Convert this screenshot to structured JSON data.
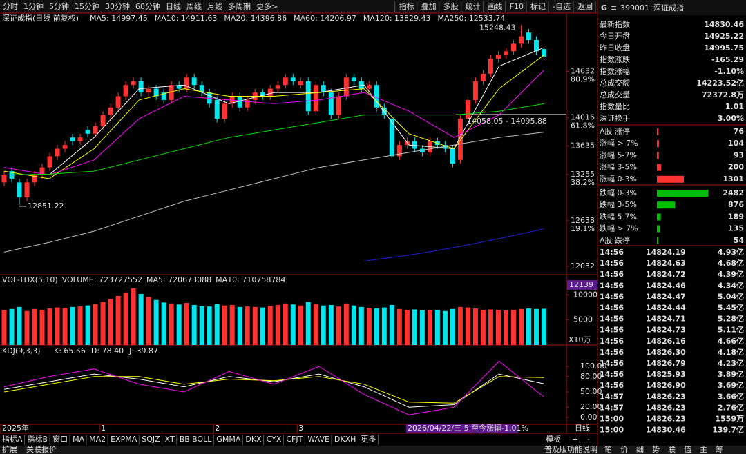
{
  "toolbar": {
    "tabs": [
      "分时",
      "1分钟",
      "5分钟",
      "15分钟",
      "30分钟",
      "60分钟",
      "日线",
      "周线",
      "月线",
      "多周期",
      "更多>"
    ],
    "buttons": [
      "指标",
      "叠加",
      "多股",
      "统计",
      "画线",
      "F10",
      "标记",
      "-自选",
      "返回"
    ]
  },
  "chart_data": [
    {
      "type": "candlestick",
      "title": "深证成指(日线 前复权)",
      "open": [
        13150,
        13300,
        13150,
        12950,
        13150,
        13250,
        13350,
        13500,
        13600,
        13750,
        13700,
        13850,
        13800,
        13900,
        14050,
        14150,
        14300,
        14450,
        14500,
        14350,
        14400,
        14350,
        14250,
        14450,
        14400,
        14550,
        14450,
        14350,
        14250,
        14000,
        14200,
        14300,
        14150,
        14250,
        14350,
        14300,
        14400,
        14450,
        14550,
        14450,
        14500,
        14100,
        14450,
        14350,
        14050,
        14300,
        14550,
        14500,
        14400,
        14450,
        14150,
        14000,
        13500,
        13650,
        13700,
        13600,
        13550,
        13700,
        13650,
        13600,
        13450,
        14000,
        14250,
        14500,
        14600,
        14800,
        14850,
        14900,
        15000,
        15150,
        15050,
        14930
      ],
      "close": [
        13250,
        13200,
        12950,
        13150,
        13250,
        13350,
        13500,
        13600,
        13650,
        13700,
        13750,
        13800,
        13900,
        14050,
        14150,
        14300,
        14450,
        14500,
        14350,
        14400,
        14300,
        14250,
        14450,
        14400,
        14550,
        14450,
        14350,
        14200,
        14000,
        14200,
        14300,
        14150,
        14250,
        14350,
        14300,
        14400,
        14450,
        14550,
        14500,
        14500,
        14100,
        14450,
        14350,
        14050,
        14300,
        14550,
        14500,
        14400,
        14450,
        14150,
        14050,
        13500,
        13650,
        13700,
        13600,
        13550,
        13700,
        13650,
        13600,
        13400,
        14000,
        14250,
        14500,
        14600,
        14800,
        14850,
        14900,
        15000,
        15100,
        15050,
        14900,
        14830
      ],
      "high": [
        13300,
        13350,
        13200,
        13200,
        13300,
        13400,
        13550,
        13650,
        13700,
        13800,
        13800,
        13900,
        13950,
        14100,
        14200,
        14350,
        14500,
        14550,
        14550,
        14450,
        14450,
        14400,
        14500,
        14500,
        14600,
        14600,
        14500,
        14400,
        14300,
        14250,
        14350,
        14350,
        14300,
        14400,
        14400,
        14450,
        14500,
        14600,
        14600,
        14550,
        14550,
        14500,
        14500,
        14400,
        14350,
        14600,
        14600,
        14550,
        14500,
        14500,
        14200,
        14050,
        13700,
        13750,
        13750,
        13650,
        13750,
        13750,
        13700,
        13650,
        14050,
        14300,
        14550,
        14650,
        14850,
        14900,
        14950,
        15050,
        15248.43,
        15200,
        15100,
        14980
      ],
      "low": [
        13100,
        13150,
        12851.22,
        12900,
        13100,
        13200,
        13300,
        13450,
        13550,
        13650,
        13650,
        13750,
        13750,
        13850,
        14000,
        14100,
        14250,
        14400,
        14300,
        14300,
        14250,
        14200,
        14200,
        14350,
        14350,
        14400,
        14300,
        14150,
        13950,
        13950,
        14150,
        14100,
        14100,
        14200,
        14250,
        14250,
        14350,
        14400,
        14450,
        14400,
        14050,
        14050,
        14300,
        14000,
        14000,
        14250,
        14450,
        14350,
        14350,
        14100,
        14000,
        13450,
        13450,
        13600,
        13550,
        13500,
        13500,
        13600,
        13550,
        13350,
        13400,
        13950,
        14200,
        14450,
        14550,
        14750,
        14800,
        14850,
        14950,
        15000,
        14850,
        14780
      ],
      "up_color": "#ff3232",
      "down_color": "#00e5ee",
      "series": [
        {
          "name": "MA5: 14997.45",
          "color": "#ffffff",
          "values": [
            13250,
            13250,
            13750,
            14400,
            14450,
            14200,
            14350,
            14350,
            14450,
            13650,
            13600,
            14700,
            14950
          ]
        },
        {
          "name": "MA10: 14911.63",
          "color": "#ffff00",
          "values": [
            13300,
            13200,
            13600,
            14250,
            14400,
            14300,
            14300,
            14350,
            14400,
            13800,
            13600,
            14400,
            14850
          ]
        },
        {
          "name": "MA20: 14396.86",
          "color": "#ff00ff",
          "values": [
            13350,
            13250,
            13450,
            14000,
            14300,
            14250,
            14200,
            14250,
            14350,
            14100,
            13750,
            14050,
            14650
          ]
        },
        {
          "name": "MA60: 14206.97",
          "color": "#00e000",
          "values": [
            13250,
            13260,
            13300,
            13450,
            13600,
            13750,
            13850,
            13950,
            14050,
            14050,
            14050,
            14100,
            14200
          ]
        },
        {
          "name": "MA120: 13829.43",
          "color": "#c0c0c0",
          "values": [
            12220,
            12350,
            12500,
            12700,
            12900,
            13050,
            13200,
            13350,
            13450,
            13550,
            13650,
            13750,
            13820
          ]
        },
        {
          "name": "MA250: 12533.74",
          "color": "#2020e0",
          "values": [
            null,
            null,
            null,
            null,
            null,
            null,
            null,
            null,
            12100,
            12180,
            12280,
            12400,
            12530
          ]
        }
      ],
      "ylim": [
        11920,
        15400
      ],
      "yticks": [
        14632,
        14016,
        13635,
        13255,
        12638,
        12032
      ],
      "fib_labels": [
        "80.9%",
        "61.8%",
        "38.2%",
        "19.1%"
      ],
      "annotations": [
        "15248.43",
        "12851.22",
        "14058.05 - 14095.88"
      ],
      "x_labels": [
        "2025年",
        "1",
        "2",
        "3"
      ],
      "range_info": "2026/04/22/三 5 至今涨幅-1.01%"
    },
    {
      "type": "bar",
      "legend": [
        "VOL-TDX(5,10)",
        "VOLUME: 723727552",
        "MA5: 720673088",
        "MA10: 710758784"
      ],
      "values": [
        7000,
        7200,
        7600,
        6800,
        7200,
        7000,
        7300,
        7500,
        7400,
        7600,
        7700,
        7900,
        8200,
        8600,
        9200,
        9800,
        10500,
        11300,
        10200,
        9600,
        9000,
        8500,
        8300,
        8100,
        8400,
        8000,
        7800,
        7700,
        8200,
        7900,
        8000,
        7600,
        7700,
        7600,
        7500,
        7800,
        8000,
        8300,
        8100,
        7900,
        8600,
        8200,
        7900,
        8000,
        7700,
        8300,
        7900,
        7600,
        7400,
        7300,
        7500,
        8000,
        7200,
        7000,
        7100,
        6900,
        7000,
        7000,
        6800,
        7200,
        7600,
        7500,
        7300,
        7000,
        7100,
        7000,
        6900,
        7000,
        7200,
        7300,
        7200,
        7237
      ],
      "ylim": [
        0,
        11720
      ],
      "yticks": [
        5000,
        10000
      ],
      "unit_label": "X10万",
      "last_label": "12139"
    },
    {
      "type": "line",
      "title": "KDJ(9,3,3)",
      "series": [
        {
          "name": "K: 65.56",
          "color": "#ffffff",
          "values": [
            55,
            70,
            85,
            75,
            60,
            80,
            70,
            85,
            60,
            20,
            25,
            85,
            66
          ]
        },
        {
          "name": "D: 78.40",
          "color": "#ffff00",
          "values": [
            50,
            65,
            80,
            80,
            65,
            75,
            72,
            80,
            65,
            30,
            28,
            80,
            78
          ]
        },
        {
          "name": "J: 39.87",
          "color": "#ff00ff",
          "values": [
            60,
            80,
            95,
            65,
            50,
            90,
            65,
            100,
            45,
            5,
            20,
            110,
            40
          ]
        }
      ],
      "ylim": [
        -13.5,
        121.6
      ],
      "yticks": [
        {
          "value": 100,
          "label": "100.00"
        },
        {
          "value": 80,
          "label": "80.00"
        },
        {
          "value": 50,
          "label": "50.00"
        },
        {
          "value": 20,
          "label": "20.00"
        },
        {
          "value": 0,
          "label": "0.00"
        }
      ]
    }
  ],
  "quote": {
    "badge": "G",
    "menu": "≡",
    "code": "399001",
    "name": "深证成指",
    "stats": [
      {
        "label": "最新指数",
        "value": "14830.46",
        "color": "#00e000"
      },
      {
        "label": "今日开盘",
        "value": "14925.22",
        "color": "#00e000"
      },
      {
        "label": "昨日收盘",
        "value": "14995.75",
        "color": "#ffffff"
      },
      {
        "label": "指数涨跌",
        "value": "-165.29",
        "color": "#00e000"
      },
      {
        "label": "指数涨幅",
        "value": "-1.10%",
        "color": "#00e000"
      },
      {
        "label": "总成交额",
        "value": "14223.52亿",
        "color": "#ffff00"
      },
      {
        "label": "总成交量",
        "value": "72372.8万",
        "color": "#ffff00"
      },
      {
        "label": "指数量比",
        "value": "1.01",
        "color": "#ff4040"
      },
      {
        "label": "深证换手",
        "value": "3.00%",
        "color": "#ffffff"
      }
    ],
    "breadth": [
      {
        "label": "A股 涨停",
        "value": 76,
        "color": "#ff3232"
      },
      {
        "label": "涨幅 > 7%",
        "value": 104,
        "color": "#ff3232"
      },
      {
        "label": "涨幅 5-7%",
        "value": 93,
        "color": "#ff3232"
      },
      {
        "label": "涨幅 3-5%",
        "value": 200,
        "color": "#ff3232"
      },
      {
        "label": "涨幅 0-3%",
        "value": 1301,
        "color": "#ff3232"
      },
      {
        "label": "跌幅 0-3%",
        "value": 2482,
        "color": "#00c000"
      },
      {
        "label": "跌幅 3-5%",
        "value": 876,
        "color": "#00c000"
      },
      {
        "label": "跌幅 5-7%",
        "value": 189,
        "color": "#00c000"
      },
      {
        "label": "跌幅 > 7%",
        "value": 135,
        "color": "#00c000"
      },
      {
        "label": "A股 跌停",
        "value": 54,
        "color": "#00c000"
      }
    ],
    "trades": [
      [
        "14:56",
        "14824.19",
        "4.93亿"
      ],
      [
        "14:56",
        "14824.63",
        "4.68亿"
      ],
      [
        "14:56",
        "14824.72",
        "4.39亿"
      ],
      [
        "14:56",
        "14824.46",
        "4.34亿"
      ],
      [
        "14:56",
        "14824.47",
        "5.04亿"
      ],
      [
        "14:56",
        "14824.44",
        "5.45亿"
      ],
      [
        "14:56",
        "14824.71",
        "5.28亿"
      ],
      [
        "14:56",
        "14824.73",
        "5.11亿"
      ],
      [
        "14:56",
        "14826.16",
        "4.66亿"
      ],
      [
        "14:56",
        "14826.30",
        "4.18亿"
      ],
      [
        "14:56",
        "14826.79",
        "4.23亿"
      ],
      [
        "14:56",
        "14825.93",
        "3.89亿"
      ],
      [
        "14:56",
        "14826.90",
        "3.69亿"
      ],
      [
        "14:57",
        "14826.23",
        "3.66亿"
      ],
      [
        "14:57",
        "14826.23",
        "2.76亿"
      ],
      [
        "15:00",
        "14826.23",
        "1559万"
      ],
      [
        "15:00",
        "14830.46",
        "139.7亿"
      ]
    ]
  },
  "bottom": {
    "tabs": [
      "指标A",
      "指标B",
      "窗口",
      "MA",
      "MA2",
      "EXPMA",
      "SQJZ",
      "XT",
      "BBIBOLL",
      "GMMA",
      "DKX",
      "CYX",
      "CFJT",
      "WAVE",
      "DKXH",
      "更多"
    ],
    "template": [
      "模板",
      "+",
      "-"
    ],
    "period": "日线",
    "status_left": [
      "扩展",
      "关联报价"
    ],
    "status_right": [
      "普及版功能说明",
      "笔",
      "价",
      "细",
      "势",
      "联",
      "值",
      "主",
      "筹"
    ]
  }
}
